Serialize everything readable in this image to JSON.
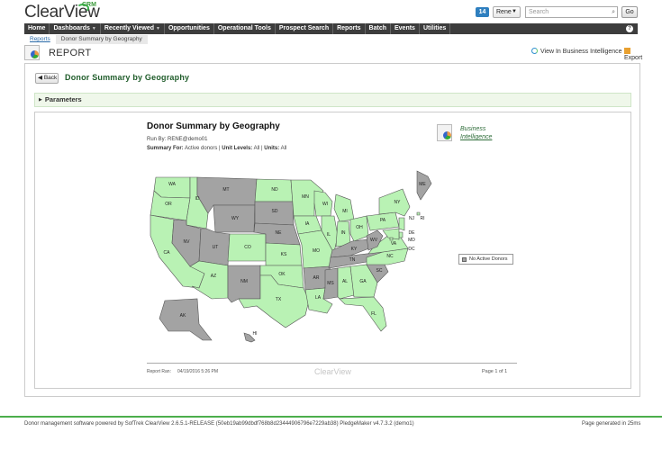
{
  "app": {
    "logo_text": "ClearView",
    "logo_suffix": "CRM",
    "notification_count": "14",
    "user_name": "Rene",
    "search_placeholder": "Search",
    "go_label": "Go"
  },
  "nav": {
    "items": [
      {
        "label": "Home",
        "has_menu": false
      },
      {
        "label": "Dashboards",
        "has_menu": true
      },
      {
        "label": "Recently Viewed",
        "has_menu": true
      },
      {
        "label": "Opportunities",
        "has_menu": false
      },
      {
        "label": "Operational Tools",
        "has_menu": false
      },
      {
        "label": "Prospect Search",
        "has_menu": false
      },
      {
        "label": "Reports",
        "has_menu": false
      },
      {
        "label": "Batch",
        "has_menu": false
      },
      {
        "label": "Events",
        "has_menu": false
      },
      {
        "label": "Utilities",
        "has_menu": false
      }
    ],
    "help_label": "?"
  },
  "breadcrumb": {
    "items": [
      "Reports",
      "Donor Summary by Geography"
    ]
  },
  "report_header": {
    "title": "REPORT",
    "bi_link": "View In Business Intelligence",
    "export_label": "Export"
  },
  "panel": {
    "back_label": "Back",
    "title": "Donor Summary by Geography",
    "parameters_label": "Parameters"
  },
  "report": {
    "title": "Donor Summary by Geography",
    "run_by": "Run By: RENE@demo01",
    "summary_label": "Summary For:",
    "summary_value": "Active donors",
    "unit_levels_label": "Unit Levels:",
    "unit_levels_value": "All",
    "units_label": "Units:",
    "units_value": "All",
    "bi_brand_line1": "Business",
    "bi_brand_line2": "Intelligence",
    "legend_label": "No Active Donors",
    "footer_run_label": "Report Ran:",
    "footer_run_date": "04/19/2016 5:26 PM",
    "footer_logo": "ClearView",
    "footer_page": "Page 1 of 1"
  },
  "map": {
    "active_color": "#b9f2b4",
    "inactive_color": "#a3a3a3",
    "states": {
      "WA": "active",
      "OR": "active",
      "CA": "active",
      "ID": "active",
      "NV": "inactive",
      "MT": "inactive",
      "WY": "inactive",
      "UT": "inactive",
      "AZ": "active",
      "CO": "active",
      "NM": "inactive",
      "ND": "active",
      "SD": "inactive",
      "NE": "inactive",
      "KS": "active",
      "OK": "active",
      "TX": "active",
      "MN": "active",
      "IA": "active",
      "MO": "active",
      "AR": "inactive",
      "LA": "active",
      "WI": "active",
      "IL": "active",
      "MI": "active",
      "IN": "active",
      "OH": "active",
      "KY": "inactive",
      "TN": "inactive",
      "MS": "inactive",
      "AL": "active",
      "GA": "active",
      "FL": "active",
      "SC": "inactive",
      "NC": "active",
      "VA": "active",
      "WV": "inactive",
      "PA": "active",
      "NY": "active",
      "ME": "inactive",
      "NJ": "active",
      "DE": "active",
      "MD": "active",
      "DC": "active",
      "RI": "active",
      "AK": "inactive",
      "HI": "inactive"
    }
  },
  "status": {
    "left": "Donor management software powered by SofTrek ClearView 2.6.5.1-RELEASE (50eb19ab99dbdf768b8d23444906796e7229ab38) PledgeMaker v4.7.3.2 (demo1)",
    "right": "Page generated in 25ms"
  }
}
